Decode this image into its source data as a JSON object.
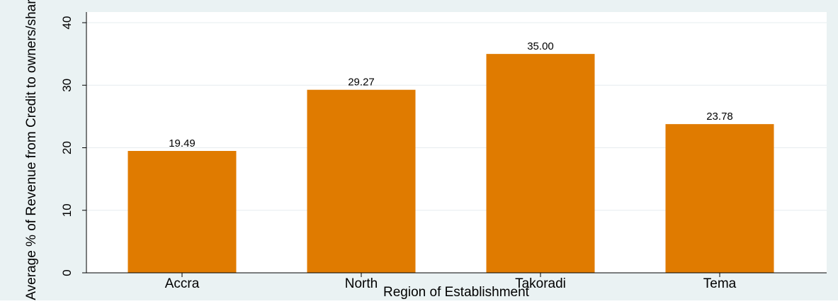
{
  "chart_data": {
    "type": "bar",
    "title": "",
    "xlabel": "Region of Establishment",
    "ylabel": "Average % of Revenue from Credit to owners/shared",
    "categories": [
      "Accra",
      "North",
      "Takoradi",
      "Tema"
    ],
    "values": [
      19.49,
      29.27,
      35.0,
      23.78
    ],
    "value_labels": [
      "19.49",
      "29.27",
      "35.00",
      "23.78"
    ],
    "ylim": [
      0,
      40
    ],
    "yticks": [
      0,
      10,
      20,
      30,
      40
    ],
    "ytick_labels": [
      "0",
      "10",
      "20",
      "30",
      "40"
    ],
    "grid": true,
    "legend": "none",
    "colors": {
      "background": "#eaf2f3",
      "plot_area": "#ffffff",
      "bar": "#e07b00",
      "gridline": "#e6ecef",
      "axis": "#000000"
    }
  }
}
